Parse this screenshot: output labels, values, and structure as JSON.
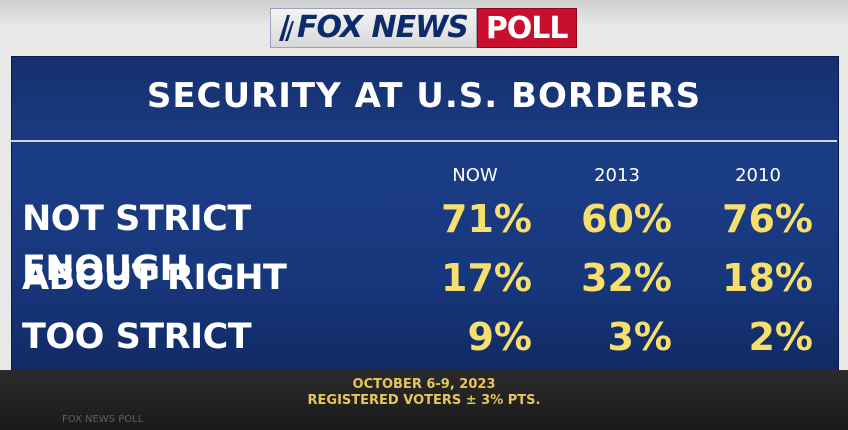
{
  "logo": {
    "network": "FOX NEWS",
    "badge": "POLL"
  },
  "watermark": "FOX NEWS POLL",
  "chart_data": {
    "type": "table",
    "title": "SECURITY AT U.S. BORDERS",
    "columns": [
      "NOW",
      "2013",
      "2010"
    ],
    "rows": [
      {
        "label": "NOT STRICT ENOUGH",
        "values": [
          "71%",
          "60%",
          "76%"
        ]
      },
      {
        "label": "ABOUT RIGHT",
        "values": [
          "17%",
          "32%",
          "18%"
        ]
      },
      {
        "label": "TOO STRICT",
        "values": [
          "9%",
          "3%",
          "2%"
        ]
      }
    ],
    "footnote": [
      "OCTOBER 6-9, 2023",
      "REGISTERED VOTERS ± 3% PTS."
    ]
  },
  "colors": {
    "panel": "#1b3d86",
    "value": "#f6df6c",
    "label": "#ffffff",
    "badge": "#c8102e"
  }
}
